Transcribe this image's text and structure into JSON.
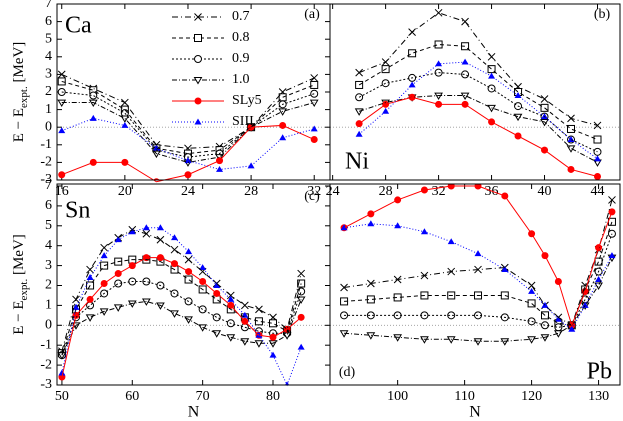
{
  "chart_data": [
    {
      "type": "line",
      "label": "Ca",
      "panel_label": "(a)",
      "ylabel": [
        "E − E",
        "expt.",
        " [MeV]"
      ],
      "legend": "upper center",
      "xlim": [
        15.7,
        33
      ],
      "ylim": [
        -3,
        7
      ],
      "xticks": [
        16,
        20,
        24,
        28,
        32
      ],
      "yticks": [
        -3,
        -2,
        -1,
        0,
        1,
        2,
        3,
        4,
        5,
        6,
        7
      ],
      "x": [
        16,
        18,
        20,
        22,
        24,
        26,
        28,
        30,
        32
      ],
      "series": [
        {
          "name": "0.7",
          "color": "#000000",
          "marker": "x",
          "dash": "6 3 1 3",
          "values": [
            3.0,
            2.2,
            1.4,
            -1.0,
            -1.2,
            -1.1,
            0,
            2.0,
            2.8
          ]
        },
        {
          "name": "0.8",
          "color": "#000000",
          "marker": "square",
          "dash": "4 3",
          "values": [
            2.6,
            2.1,
            1.0,
            -1.2,
            -1.5,
            -1.3,
            0,
            1.7,
            2.4
          ]
        },
        {
          "name": "0.9",
          "color": "#000000",
          "marker": "circle",
          "dash": "2 2",
          "values": [
            2.0,
            1.8,
            0.8,
            -1.3,
            -1.7,
            -1.5,
            0,
            1.3,
            1.9
          ]
        },
        {
          "name": "1.0",
          "color": "#000000",
          "marker": "triangle-down",
          "dash": "5 2 1 2",
          "values": [
            1.4,
            1.4,
            0.5,
            -1.5,
            -2.0,
            -1.7,
            0,
            0.9,
            1.4
          ]
        },
        {
          "name": "SLy5",
          "color": "#ff0000",
          "marker": "filled-circle",
          "dash": "none",
          "values": [
            -2.7,
            -2.0,
            -2.0,
            -3.1,
            -2.7,
            -1.9,
            0,
            0.1,
            -0.7
          ]
        },
        {
          "name": "SIII",
          "color": "#0000ff",
          "marker": "filled-triangle",
          "dash": "1 2",
          "values": [
            -0.2,
            0.5,
            0.1,
            -1.2,
            -1.9,
            -2.4,
            -2.2,
            -0.6,
            -0.1
          ]
        }
      ]
    },
    {
      "type": "line",
      "label": "Ni",
      "panel_label": "(b)",
      "xlim": [
        23.8,
        45.7
      ],
      "ylim": [
        -3,
        7
      ],
      "xticks": [
        24,
        28,
        32,
        36,
        40,
        44
      ],
      "x": [
        26,
        28,
        30,
        32,
        34,
        36,
        38,
        40,
        42,
        44
      ],
      "series": [
        {
          "color": "#000000",
          "marker": "x",
          "dash": "6 3 1 3",
          "values": [
            3.1,
            3.7,
            5.4,
            6.5,
            6.0,
            4.0,
            2.3,
            1.6,
            0.5,
            0.1
          ]
        },
        {
          "color": "#000000",
          "marker": "square",
          "dash": "4 3",
          "values": [
            2.4,
            3.3,
            4.2,
            4.7,
            4.6,
            3.3,
            2.0,
            1.1,
            -0.1,
            -0.7
          ]
        },
        {
          "color": "#000000",
          "marker": "circle",
          "dash": "2 2",
          "values": [
            1.7,
            2.5,
            2.8,
            3.1,
            3.0,
            2.2,
            1.2,
            0.6,
            -0.7,
            -1.4
          ]
        },
        {
          "color": "#000000",
          "marker": "triangle-down",
          "dash": "5 2 1 2",
          "values": [
            0.9,
            1.4,
            1.7,
            1.8,
            1.8,
            1.1,
            0.6,
            0.3,
            -1.2,
            -2.0
          ]
        },
        {
          "color": "#ff0000",
          "marker": "filled-circle",
          "dash": "none",
          "values": [
            0.2,
            1.3,
            1.7,
            1.3,
            1.3,
            0.3,
            -0.5,
            -1.3,
            -2.4,
            -2.8
          ]
        },
        {
          "color": "#0000ff",
          "marker": "filled-triangle",
          "dash": "1 2",
          "values": [
            -0.4,
            0.9,
            2.4,
            3.6,
            3.7,
            2.9,
            1.8,
            0.6,
            -0.7,
            -1.8
          ]
        }
      ]
    },
    {
      "type": "line",
      "label": "Sn",
      "panel_label": "(c)",
      "ylabel": [
        "E − E",
        "expt.",
        " [MeV]"
      ],
      "xlabel": "N",
      "xlim": [
        49.3,
        88.1
      ],
      "ylim": [
        -3,
        7.1
      ],
      "xticks": [
        50,
        60,
        70,
        80
      ],
      "yticks": [
        -3,
        -2,
        -1,
        0,
        1,
        2,
        3,
        4,
        5,
        6,
        7
      ],
      "x": [
        50,
        52,
        54,
        56,
        58,
        60,
        62,
        64,
        66,
        68,
        70,
        72,
        74,
        76,
        78,
        80,
        82,
        84
      ],
      "series": [
        {
          "color": "#000000",
          "marker": "x",
          "dash": "6 3 1 3",
          "values": [
            -1.3,
            1.3,
            2.8,
            3.9,
            4.4,
            4.8,
            4.6,
            4.3,
            3.8,
            3.3,
            2.7,
            2.1,
            1.5,
            1.0,
            0.8,
            0.4,
            -0.2,
            2.6
          ]
        },
        {
          "color": "#000000",
          "marker": "square",
          "dash": "4 3",
          "values": [
            -1.4,
            0.8,
            2.0,
            3.0,
            3.2,
            3.3,
            3.3,
            3.2,
            2.8,
            2.3,
            1.8,
            1.3,
            0.8,
            0.4,
            0.2,
            0.1,
            -0.3,
            2.1
          ]
        },
        {
          "color": "#000000",
          "marker": "circle",
          "dash": "2 2",
          "values": [
            -1.5,
            0.4,
            1.0,
            1.6,
            2.1,
            2.2,
            2.2,
            2.0,
            1.6,
            1.2,
            0.8,
            0.4,
            0.1,
            -0.1,
            -0.3,
            -0.4,
            -0.4,
            1.7
          ]
        },
        {
          "color": "#000000",
          "marker": "triangle-down",
          "dash": "5 2 1 2",
          "values": [
            -1.5,
            0,
            0.4,
            0.7,
            0.9,
            1.1,
            1.2,
            1.0,
            0.6,
            0.3,
            -0.1,
            -0.4,
            -0.6,
            -0.8,
            -0.9,
            -0.9,
            -0.5,
            1.3
          ]
        },
        {
          "color": "#ff0000",
          "marker": "filled-circle",
          "dash": "none",
          "values": [
            -2.6,
            0.5,
            1.3,
            2.1,
            2.6,
            3.0,
            3.4,
            3.4,
            3.1,
            2.7,
            2.2,
            1.6,
            1.0,
            0.2,
            -0.5,
            -0.6,
            -0.2,
            0.4
          ]
        },
        {
          "color": "#0000ff",
          "marker": "filled-triangle",
          "dash": "1 2",
          "values": [
            -2.4,
            0.9,
            2.4,
            3.5,
            4.3,
            4.7,
            4.9,
            4.9,
            4.4,
            3.7,
            2.9,
            2.0,
            1.3,
            0.5,
            -0.5,
            -1.5,
            -3.0,
            -1.1
          ]
        }
      ]
    },
    {
      "type": "line",
      "label": "Pb",
      "panel_label": "(d)",
      "xlabel": "N",
      "xlim": [
        89.9,
        133.2
      ],
      "ylim": [
        -3,
        7.1
      ],
      "xticks": [
        100,
        110,
        120,
        130
      ],
      "x": [
        92,
        96,
        100,
        104,
        108,
        112,
        116,
        120,
        122,
        124,
        126,
        128,
        130,
        132
      ],
      "series": [
        {
          "color": "#000000",
          "marker": "x",
          "dash": "6 3 1 3",
          "values": [
            1.9,
            2.1,
            2.3,
            2.5,
            2.7,
            2.8,
            2.9,
            2.0,
            1.0,
            0.4,
            0,
            2.0,
            3.8,
            6.3
          ]
        },
        {
          "color": "#000000",
          "marker": "square",
          "dash": "4 3",
          "values": [
            1.2,
            1.3,
            1.4,
            1.5,
            1.5,
            1.5,
            1.5,
            1.1,
            0.5,
            0.1,
            0,
            1.8,
            3.2,
            5.2
          ]
        },
        {
          "color": "#000000",
          "marker": "circle",
          "dash": "2 2",
          "values": [
            0.5,
            0.5,
            0.5,
            0.5,
            0.5,
            0.5,
            0.4,
            0.2,
            0,
            -0.1,
            0,
            1.3,
            2.7,
            4.6
          ]
        },
        {
          "color": "#000000",
          "marker": "triangle-down",
          "dash": "5 2 1 2",
          "values": [
            -0.4,
            -0.5,
            -0.6,
            -0.7,
            -0.7,
            -0.8,
            -0.8,
            -0.7,
            -0.6,
            -0.4,
            0,
            1.0,
            2.0,
            3.4
          ]
        },
        {
          "color": "#ff0000",
          "marker": "filled-circle",
          "dash": "none",
          "values": [
            4.9,
            5.6,
            6.3,
            6.8,
            7.0,
            7.0,
            6.5,
            4.6,
            3.5,
            2.2,
            0,
            1.7,
            3.9,
            5.7
          ]
        },
        {
          "color": "#0000ff",
          "marker": "filled-triangle",
          "dash": "1 2",
          "values": [
            4.9,
            5.1,
            5.0,
            4.7,
            4.2,
            3.6,
            2.8,
            1.7,
            1.0,
            0.3,
            -0.2,
            1.0,
            2.3,
            3.5
          ]
        }
      ]
    }
  ]
}
